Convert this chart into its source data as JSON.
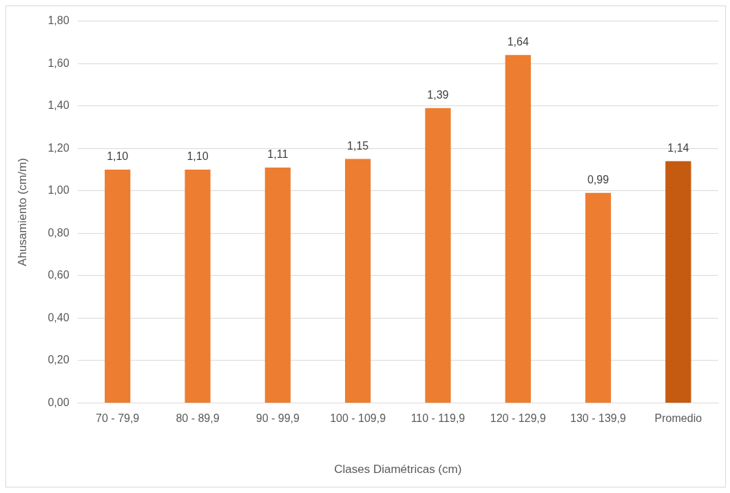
{
  "chart_data": {
    "type": "bar",
    "xlabel": "Clases Diamétricas (cm)",
    "ylabel": "Ahusamiento (cm/m)",
    "categories": [
      "70 - 79,9",
      "80 - 89,9",
      "90 - 99,9",
      "100 - 109,9",
      "110 - 119,9",
      "120 - 129,9",
      "130 - 139,9",
      "Promedio"
    ],
    "values": [
      1.1,
      1.1,
      1.11,
      1.15,
      1.39,
      1.64,
      0.99,
      1.14
    ],
    "colors": [
      "#ed7d31",
      "#ed7d31",
      "#ed7d31",
      "#ed7d31",
      "#ed7d31",
      "#ed7d31",
      "#ed7d31",
      "#c55a11"
    ],
    "value_labels": [
      "1,10",
      "1,10",
      "1,11",
      "1,15",
      "1,39",
      "1,64",
      "0,99",
      "1,14"
    ],
    "ylim": [
      0,
      1.8
    ],
    "yticks": [
      {
        "value": 0,
        "label": "0,00"
      },
      {
        "value": 0.2,
        "label": "0,20"
      },
      {
        "value": 0.4,
        "label": "0,40"
      },
      {
        "value": 0.6,
        "label": "0,60"
      },
      {
        "value": 0.8,
        "label": "0,80"
      },
      {
        "value": 1,
        "label": "1,00"
      },
      {
        "value": 1.2,
        "label": "1,20"
      },
      {
        "value": 1.4,
        "label": "1,40"
      },
      {
        "value": 1.6,
        "label": "1,60"
      },
      {
        "value": 1.8,
        "label": "1,80"
      }
    ],
    "grid": "y"
  }
}
